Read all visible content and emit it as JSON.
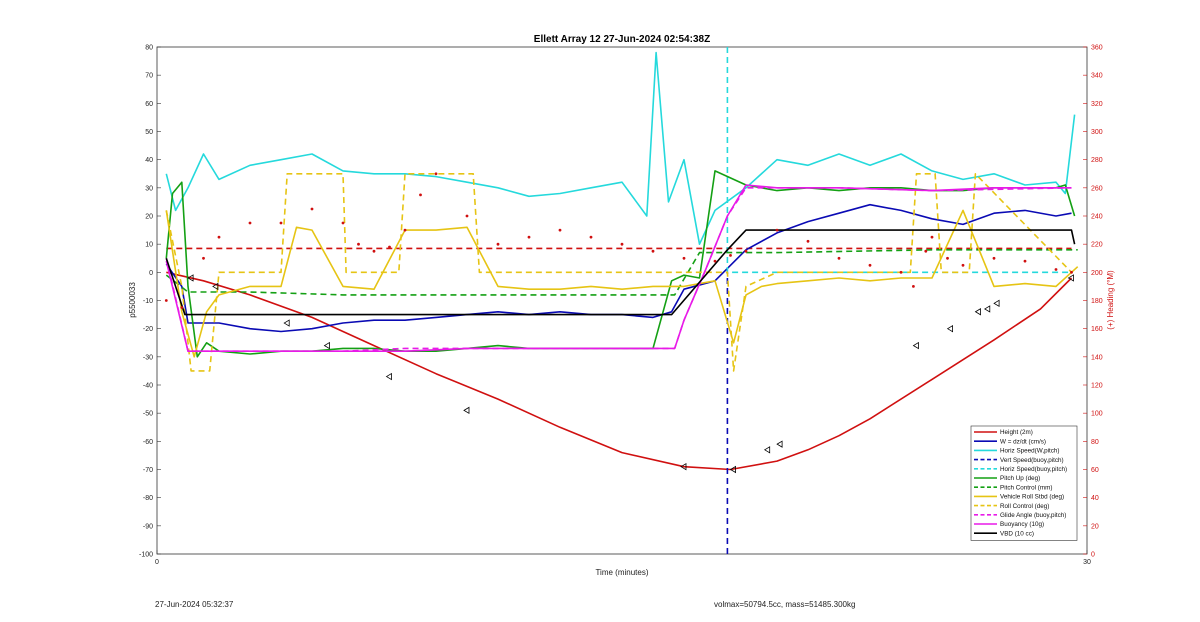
{
  "chart_data": {
    "type": "line",
    "title": "Ellett Array 12 27-Jun-2024 02:54:38Z",
    "xlabel": "Time (minutes)",
    "ylabel": "p5500033",
    "y2label": "(+) Heading (°M)",
    "xlim": [
      0,
      30
    ],
    "ylim": [
      -100,
      80
    ],
    "y2lim": [
      0,
      360
    ],
    "xticks": [
      "0",
      "30"
    ],
    "yticks": [
      "80",
      "70",
      "60",
      "50",
      "40",
      "30",
      "20",
      "10",
      "0",
      "-10",
      "-20",
      "-30",
      "-40",
      "-50",
      "-60",
      "-70",
      "-80",
      "-90",
      "-100"
    ],
    "y2ticks": [
      "360",
      "340",
      "320",
      "300",
      "280",
      "260",
      "240",
      "220",
      "200",
      "180",
      "160",
      "140",
      "120",
      "100",
      "80",
      "60",
      "40",
      "20",
      "0"
    ],
    "legend_position": "bottom-right",
    "series": [
      {
        "name": "Height (2m)",
        "color": "#d01010",
        "style": "solid",
        "x": [
          0.3,
          1.5,
          3,
          5,
          7,
          9,
          11,
          13,
          15,
          17,
          18.5,
          20,
          21,
          22,
          23,
          25,
          27,
          28.5,
          29.5
        ],
        "y": [
          0,
          -3,
          -8,
          -16,
          -26,
          -36,
          -45,
          -55,
          -64,
          -69,
          -70,
          -67,
          -63,
          -58,
          -52,
          -38,
          -24,
          -13,
          -2
        ]
      },
      {
        "name": "W = dz/dt (cm/s)",
        "color": "#0a0ab4",
        "style": "solid",
        "x": [
          0.3,
          0.8,
          1,
          2,
          3,
          4,
          5,
          6,
          7,
          8,
          9,
          10,
          11,
          12,
          13,
          14,
          15,
          16,
          16.6,
          17,
          18,
          19,
          20,
          21,
          22,
          23,
          24,
          25,
          26,
          27,
          28,
          29,
          29.5
        ],
        "y": [
          3,
          -5,
          -18,
          -18,
          -20,
          -21,
          -20,
          -18,
          -17,
          -17,
          -16,
          -15,
          -14,
          -15,
          -14,
          -15,
          -15,
          -16,
          -14,
          -6,
          -3,
          8,
          14,
          18,
          21,
          24,
          22,
          19,
          17,
          21,
          22,
          20,
          21
        ]
      },
      {
        "name": "Horiz Speed(W,pitch)",
        "color": "#25d9dc",
        "style": "solid",
        "x": [
          0.3,
          0.6,
          1,
          1.5,
          2,
          3,
          4,
          5,
          6,
          7,
          8,
          9,
          10,
          11,
          12,
          13,
          14,
          15,
          15.8,
          16.1,
          16.5,
          17,
          17.5,
          18,
          19,
          20,
          21,
          22,
          23,
          24,
          25,
          26,
          27,
          28,
          29,
          29.3,
          29.6
        ],
        "y": [
          35,
          22,
          30,
          42,
          33,
          38,
          40,
          42,
          36,
          35,
          35,
          34,
          32,
          30,
          27,
          28,
          30,
          32,
          20,
          78,
          25,
          40,
          10,
          22,
          30,
          40,
          38,
          42,
          38,
          42,
          36,
          33,
          35,
          31,
          32,
          28,
          56
        ]
      },
      {
        "name": "Vert Speed(buoy,pitch)",
        "color": "#0a0ab4",
        "style": "dashed",
        "x": [
          18.4,
          18.4
        ],
        "y": [
          -100,
          0
        ]
      },
      {
        "name": "Horiz Speed(buoy,pitch)",
        "color": "#25d9dc",
        "style": "dashed",
        "x": [
          18.4,
          18.4,
          29.5
        ],
        "y": [
          80,
          0,
          0
        ]
      },
      {
        "name": "Pitch Up (deg)",
        "color": "#14a014",
        "style": "solid",
        "x": [
          0.3,
          0.5,
          0.8,
          1,
          1.3,
          1.6,
          2,
          3,
          4,
          5,
          6,
          7,
          8,
          9,
          10,
          11,
          12,
          13,
          14,
          15,
          16,
          16.6,
          17,
          17.5,
          18,
          19,
          20,
          21,
          22,
          23,
          24,
          25,
          26,
          27,
          28,
          29,
          29.3,
          29.6
        ],
        "y": [
          5,
          28,
          32,
          -5,
          -30,
          -25,
          -28,
          -29,
          -28,
          -28,
          -27,
          -27,
          -28,
          -28,
          -27,
          -26,
          -27,
          -27,
          -27,
          -27,
          -27,
          -3,
          -1,
          -2,
          36,
          31,
          29,
          30,
          29,
          30,
          30,
          29,
          29,
          30,
          30,
          30,
          31,
          20
        ]
      },
      {
        "name": "Pitch Control (mm)",
        "color": "#14a014",
        "style": "dashed",
        "x": [
          0.3,
          1,
          3,
          6,
          9,
          12,
          16.7,
          17.5,
          20,
          25,
          29.7
        ],
        "y": [
          -1,
          -7,
          -7,
          -8,
          -8,
          -8,
          -8,
          7,
          7,
          8,
          8
        ]
      },
      {
        "name": "Vehicle Roll Stbd (deg)",
        "color": "#e6c414",
        "style": "solid",
        "x": [
          0.3,
          0.8,
          1.2,
          1.6,
          2,
          3,
          4,
          4.5,
          5,
          6,
          7,
          8,
          9,
          10,
          11,
          12,
          13,
          14,
          15,
          16,
          17,
          18,
          18.6,
          19,
          19.5,
          20,
          21,
          22,
          23,
          24,
          25,
          26,
          27,
          28,
          29,
          29.7
        ],
        "y": [
          22,
          -14,
          -30,
          -14,
          -8,
          -5,
          -5,
          16,
          15,
          -5,
          -6,
          15,
          15,
          16,
          -5,
          -6,
          -6,
          -5,
          -6,
          -5,
          -5,
          -3,
          -25,
          -8,
          -5,
          -4,
          -3,
          -2,
          -3,
          -2,
          -2,
          22,
          -5,
          -4,
          -5,
          2
        ]
      },
      {
        "name": "Roll Control (deg)",
        "color": "#e6c414",
        "style": "dashed",
        "x": [
          0.3,
          0.8,
          1.1,
          1.7,
          2,
          4,
          4.2,
          6,
          6.1,
          7.8,
          8,
          10.2,
          10.4,
          15,
          18.4,
          18.6,
          19,
          20,
          24.3,
          24.5,
          25.1,
          25.3,
          26.2,
          26.4,
          29.5
        ],
        "y": [
          22,
          -5,
          -35,
          -35,
          0,
          0,
          35,
          35,
          0,
          0,
          35,
          35,
          0,
          0,
          0,
          -35,
          -5,
          0,
          0,
          35,
          35,
          0,
          0,
          35,
          0
        ]
      },
      {
        "name": "Glide Angle (buoy,pitch)",
        "color": "#e81ae8",
        "style": "dashed",
        "x": [
          0.3,
          1,
          2,
          4,
          6,
          8,
          10,
          12,
          14,
          16,
          16.7,
          17,
          17.7,
          18.4,
          19,
          22,
          25,
          29.5
        ],
        "y": [
          5,
          -28,
          -28,
          -28,
          -28,
          -27,
          -27,
          -27,
          -27,
          -27,
          -27,
          -17,
          1,
          20,
          30,
          30,
          29,
          30
        ]
      },
      {
        "name": "Buoyancy (10g)",
        "color": "#e81ae8",
        "style": "solid",
        "x": [
          0.3,
          1,
          2,
          4,
          6,
          8,
          10,
          12,
          14,
          16,
          16.7,
          17,
          17.7,
          18.4,
          19,
          20,
          22,
          25,
          27,
          29,
          29.5
        ],
        "y": [
          4,
          -28,
          -28,
          -28,
          -28,
          -28,
          -27,
          -27,
          -27,
          -27,
          -27,
          -17,
          1,
          20,
          31,
          30,
          30,
          29,
          30,
          30,
          30
        ]
      },
      {
        "name": "VBD (10 cc)",
        "color": "#000000",
        "style": "solid",
        "x": [
          0.3,
          0.9,
          15,
          16.6,
          18.4,
          19,
          29.5,
          29.6
        ],
        "y": [
          5,
          -15,
          -15,
          -15,
          8,
          15,
          15,
          10
        ]
      }
    ],
    "heading": {
      "name": "(+) Heading (°M)",
      "color": "#d01010",
      "style": "dotted",
      "axis": "right",
      "x": [
        0.3,
        0.8,
        1.5,
        2,
        3,
        4,
        5,
        6,
        6.5,
        7,
        7.5,
        8,
        8.5,
        9,
        10,
        11,
        12,
        13,
        14,
        15,
        16,
        17,
        18,
        18.5,
        19,
        20,
        21,
        22,
        23,
        24,
        24.4,
        24.8,
        25,
        25.5,
        26,
        27,
        28,
        29,
        29.5
      ],
      "y": [
        180,
        175,
        210,
        225,
        235,
        235,
        245,
        235,
        220,
        215,
        218,
        230,
        255,
        270,
        240,
        220,
        225,
        230,
        225,
        220,
        215,
        210,
        208,
        212,
        215,
        230,
        222,
        210,
        205,
        200,
        190,
        215,
        225,
        210,
        205,
        210,
        208,
        202,
        200
      ]
    },
    "heading_reference": {
      "color": "#d01010",
      "style": "dashed",
      "axis": "right",
      "x": [
        0.3,
        29.5
      ],
      "y": [
        217,
        217
      ]
    },
    "markers": {
      "color": "#000000",
      "shape": "triangle",
      "x": [
        1.1,
        1.9,
        4.2,
        5.5,
        7.5,
        10,
        17,
        18.6,
        19.7,
        20.1,
        24.5,
        25.6,
        26.5,
        26.8,
        27.1,
        29.5
      ],
      "y": [
        -2,
        -5,
        -18,
        -26,
        -37,
        -49,
        -69,
        -70,
        -63,
        -61,
        -26,
        -20,
        -14,
        -13,
        -11,
        -2
      ]
    }
  },
  "footer": {
    "left": "27-Jun-2024 05:32:37",
    "right": "volmax=50794.5cc, mass=51485.300kg"
  }
}
